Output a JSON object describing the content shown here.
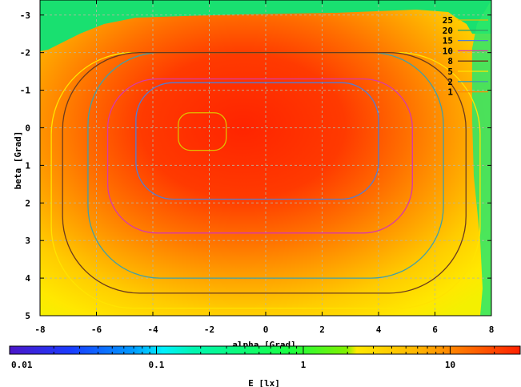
{
  "chart_data": {
    "type": "heatmap",
    "title": "",
    "xlabel": "alpha [Grad]",
    "ylabel": "beta [Grad]",
    "xlim": [
      -8,
      8
    ],
    "ylim": [
      5,
      -3.4
    ],
    "x_ticks": [
      -8,
      -6,
      -4,
      -2,
      0,
      2,
      4,
      6,
      8
    ],
    "y_ticks": [
      -3,
      -2,
      -1,
      0,
      1,
      2,
      3,
      4,
      5
    ],
    "grid": true,
    "legend_position": "top-right",
    "contour_levels": [
      {
        "label": "25",
        "level": 25,
        "color": "#e0c000"
      },
      {
        "label": "20",
        "level": 20,
        "color": "#33a064"
      },
      {
        "label": "15",
        "level": 15,
        "color": "#4f7ed8"
      },
      {
        "label": "10",
        "level": 10,
        "color": "#d93aa8"
      },
      {
        "label": "8",
        "level": 8,
        "color": "#6b3a1e"
      },
      {
        "label": "5",
        "level": 5,
        "color": "#ffe300"
      },
      {
        "label": "2",
        "level": 2,
        "color": "#41a0a8"
      },
      {
        "label": "1",
        "level": 1,
        "color": "#ff8c00"
      }
    ],
    "contours": [
      {
        "label": "2",
        "x": [
          -6.3,
          6.3
        ],
        "y": [
          -2.0,
          4.0
        ]
      },
      {
        "label": "5",
        "x": [
          -7.6,
          7.6
        ],
        "y": [
          -2.0,
          4.8
        ]
      },
      {
        "label": "8",
        "x": [
          -7.2,
          7.1
        ],
        "y": [
          -2.0,
          4.4
        ]
      },
      {
        "label": "10",
        "x": [
          -5.6,
          5.2
        ],
        "y": [
          -1.3,
          2.8
        ]
      },
      {
        "label": "15",
        "x": [
          -4.6,
          4.0
        ],
        "y": [
          -1.2,
          1.9
        ]
      },
      {
        "label": "25",
        "x": [
          -3.1,
          -1.4
        ],
        "y": [
          -0.4,
          0.6
        ]
      }
    ],
    "colorbar": {
      "label": "E [lx]",
      "scale": "log",
      "min": 0.01,
      "max": 30,
      "ticks": [
        "0.01",
        "0.1",
        "1",
        "10"
      ]
    }
  }
}
